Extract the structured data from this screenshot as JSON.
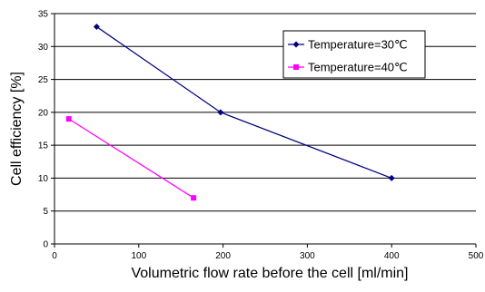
{
  "chart_data": {
    "type": "line",
    "xlabel": "Volumetric flow rate before the cell [ml/min]",
    "ylabel": "Cell efficiency [%]",
    "xlim": [
      0,
      500
    ],
    "ylim": [
      0,
      35
    ],
    "xticks": [
      0,
      100,
      200,
      300,
      400,
      500
    ],
    "yticks": [
      0,
      5,
      10,
      15,
      20,
      25,
      30,
      35
    ],
    "grid": "horizontal",
    "legend_position": "top-right",
    "series": [
      {
        "name": "Temperature=30℃",
        "color": "#000080",
        "marker": "diamond",
        "x": [
          50,
          197,
          400
        ],
        "y": [
          33,
          20,
          10
        ]
      },
      {
        "name": "Temperature=40℃",
        "color": "#ff00ff",
        "marker": "square",
        "x": [
          17,
          165
        ],
        "y": [
          19,
          7
        ]
      }
    ]
  }
}
